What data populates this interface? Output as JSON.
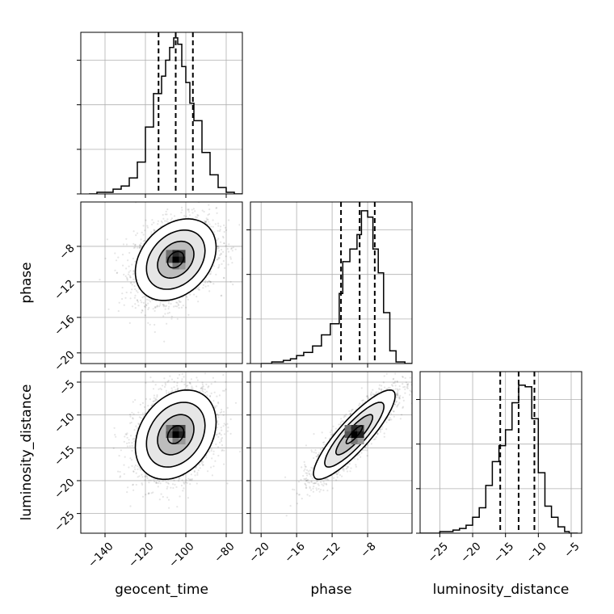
{
  "chart_data": {
    "type": "corner",
    "parameters": [
      "geocent_time",
      "phase",
      "luminosity_distance"
    ],
    "grid": true,
    "quantile_lines": "dashed",
    "ticks": {
      "geocent_time": [
        -140,
        -120,
        -100,
        -80
      ],
      "phase": [
        -20,
        -16,
        -12,
        -8
      ],
      "luminosity_distance": [
        -25,
        -20,
        -15,
        -10,
        -5
      ]
    },
    "tick_labels": {
      "geocent_time": [
        "−140",
        "−120",
        "−100",
        "−80"
      ],
      "phase": [
        "−20",
        "−16",
        "−12",
        "−8"
      ],
      "luminosity_distance": [
        "−25",
        "−20",
        "−15",
        "−10",
        "−5"
      ]
    },
    "ranges": {
      "geocent_time": [
        -152,
        -72
      ],
      "phase": [
        -21.2,
        -3
      ],
      "luminosity_distance": [
        -28,
        -3.4
      ]
    },
    "marginals": {
      "geocent_time": {
        "bin_edges": [
          -148,
          -144,
          -140,
          -136,
          -132,
          -128,
          -124,
          -120,
          -116,
          -112,
          -110,
          -108,
          -106,
          -104,
          -102,
          -100,
          -98,
          -96,
          -92,
          -88,
          -84,
          -80,
          -76,
          -72
        ],
        "counts": [
          0,
          0.01,
          0.01,
          0.03,
          0.05,
          0.1,
          0.2,
          0.42,
          0.63,
          0.74,
          0.84,
          0.92,
          0.98,
          0.94,
          0.8,
          0.7,
          0.57,
          0.46,
          0.26,
          0.12,
          0.04,
          0.01,
          0.0
        ],
        "quantiles": [
          -113.5,
          -105,
          -96.5
        ]
      },
      "phase": {
        "bin_edges": [
          -20,
          -18.8,
          -17.5,
          -16.7,
          -16,
          -15.2,
          -14.2,
          -13.2,
          -12.2,
          -11.2,
          -10.8,
          -10,
          -9.2,
          -8.7,
          -8,
          -7.4,
          -6.8,
          -6.2,
          -5.5,
          -4.8,
          -3.8,
          -3
        ],
        "counts": [
          0,
          0.01,
          0.02,
          0.03,
          0.05,
          0.07,
          0.11,
          0.18,
          0.25,
          0.44,
          0.64,
          0.72,
          0.81,
          0.96,
          0.92,
          0.72,
          0.57,
          0.32,
          0.08,
          0.01,
          0
        ],
        "quantiles": [
          -11,
          -8.9,
          -7.2
        ]
      },
      "luminosity_distance": {
        "bin_edges": [
          -28,
          -25,
          -23,
          -22,
          -21,
          -20,
          -19,
          -18,
          -17,
          -16,
          -15,
          -14,
          -13,
          -12,
          -11,
          -10,
          -9,
          -8,
          -7,
          -6,
          -5.3,
          -4
        ],
        "counts": [
          0,
          0.01,
          0.02,
          0.03,
          0.05,
          0.1,
          0.16,
          0.3,
          0.45,
          0.55,
          0.65,
          0.82,
          0.93,
          0.92,
          0.72,
          0.38,
          0.17,
          0.1,
          0.04,
          0.01,
          0
        ],
        "quantiles": [
          -15.8,
          -13,
          -10.6
        ]
      }
    },
    "joint": {
      "phase_vs_geocent_time": {
        "mean": [
          -105,
          -9.5
        ],
        "sd": [
          10,
          2.3
        ],
        "corr": 0.3
      },
      "luminosity_distance_vs_geocent_time": {
        "mean": [
          -105,
          -13
        ],
        "sd": [
          10,
          3.4
        ],
        "corr": 0.28
      },
      "luminosity_distance_vs_phase": {
        "mean": [
          -9.5,
          -13
        ],
        "sd": [
          2.3,
          3.4
        ],
        "corr": 0.87
      }
    }
  }
}
